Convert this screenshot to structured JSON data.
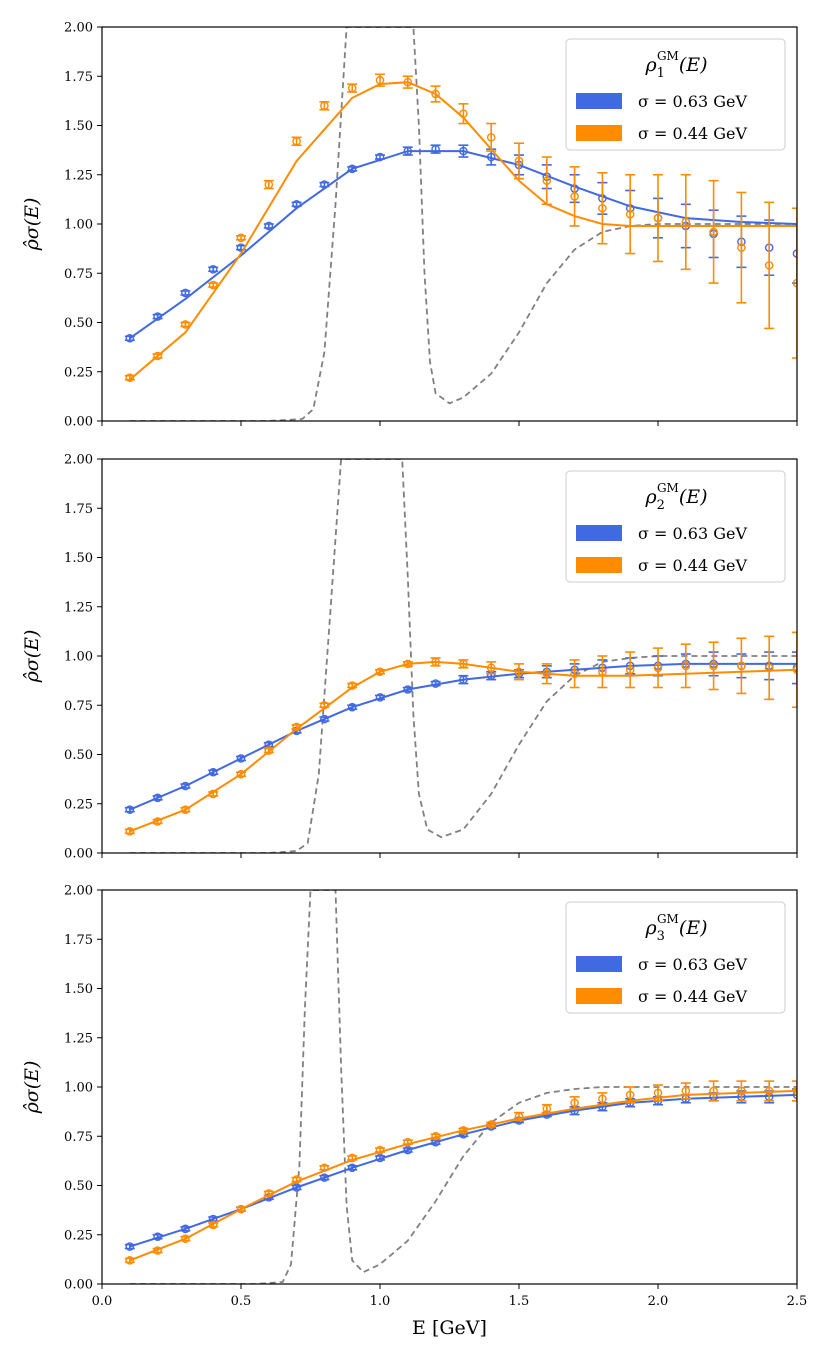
{
  "chart_data": [
    {
      "type": "line",
      "panel": 1,
      "legend": {
        "title_main": "ρ",
        "title_sub": "1",
        "title_sup": "GM",
        "title_tail": "(E)",
        "placement": "top-right"
      },
      "ylabel": "ρ̂σ(E)",
      "xlim": [
        0.0,
        2.5
      ],
      "ylim": [
        0.0,
        2.0
      ],
      "yticks": [
        "0.00",
        "0.25",
        "0.50",
        "0.75",
        "1.00",
        "1.25",
        "1.50",
        "1.75",
        "2.00"
      ],
      "reference": {
        "style": "dashed",
        "color": "#808080",
        "x": [
          0.1,
          0.6,
          0.72,
          0.76,
          0.8,
          0.84,
          0.88,
          0.9,
          1.12,
          1.14,
          1.16,
          1.18,
          1.2,
          1.25,
          1.3,
          1.4,
          1.5,
          1.6,
          1.7,
          1.8,
          1.9,
          2.0,
          2.1,
          2.5
        ],
        "y": [
          0.0,
          0.0,
          0.01,
          0.06,
          0.35,
          1.1,
          2.0,
          2.0,
          2.0,
          1.5,
          0.75,
          0.3,
          0.14,
          0.09,
          0.12,
          0.24,
          0.45,
          0.7,
          0.87,
          0.96,
          0.99,
          1.0,
          1.0,
          1.0
        ]
      },
      "series": [
        {
          "name": "σ = 0.63 GeV",
          "color": "#4169E1",
          "curve_x": [
            0.1,
            0.3,
            0.5,
            0.7,
            0.9,
            1.1,
            1.3,
            1.5,
            1.7,
            1.9,
            2.1,
            2.3,
            2.5
          ],
          "curve_y": [
            0.42,
            0.62,
            0.84,
            1.08,
            1.28,
            1.37,
            1.37,
            1.3,
            1.19,
            1.09,
            1.03,
            1.01,
            1.0
          ],
          "points_x": [
            0.1,
            0.2,
            0.3,
            0.4,
            0.5,
            0.6,
            0.7,
            0.8,
            0.9,
            1.0,
            1.1,
            1.2,
            1.3,
            1.4,
            1.5,
            1.6,
            1.7,
            1.8,
            1.9,
            2.0,
            2.1,
            2.2,
            2.3,
            2.4,
            2.5
          ],
          "points_y": [
            0.42,
            0.53,
            0.65,
            0.77,
            0.88,
            0.99,
            1.1,
            1.2,
            1.28,
            1.34,
            1.37,
            1.38,
            1.37,
            1.34,
            1.3,
            1.24,
            1.18,
            1.13,
            1.08,
            1.03,
            0.99,
            0.95,
            0.91,
            0.88,
            0.85
          ],
          "err": [
            0.01,
            0.01,
            0.01,
            0.01,
            0.01,
            0.01,
            0.01,
            0.01,
            0.01,
            0.01,
            0.02,
            0.02,
            0.03,
            0.04,
            0.05,
            0.06,
            0.07,
            0.08,
            0.09,
            0.1,
            0.11,
            0.12,
            0.13,
            0.14,
            0.15
          ]
        },
        {
          "name": "σ = 0.44 GeV",
          "color": "#FF8C00",
          "curve_x": [
            0.1,
            0.3,
            0.5,
            0.7,
            0.9,
            1.0,
            1.1,
            1.2,
            1.3,
            1.4,
            1.5,
            1.6,
            1.7,
            1.8,
            1.9,
            2.0,
            2.2,
            2.5
          ],
          "curve_y": [
            0.21,
            0.45,
            0.85,
            1.32,
            1.64,
            1.71,
            1.72,
            1.66,
            1.54,
            1.38,
            1.22,
            1.1,
            1.04,
            1.0,
            0.99,
            0.99,
            0.99,
            0.99
          ],
          "points_x": [
            0.1,
            0.2,
            0.3,
            0.4,
            0.5,
            0.6,
            0.7,
            0.8,
            0.9,
            1.0,
            1.1,
            1.2,
            1.3,
            1.4,
            1.5,
            1.6,
            1.7,
            1.8,
            1.9,
            2.0,
            2.1,
            2.2,
            2.3,
            2.4,
            2.5
          ],
          "points_y": [
            0.22,
            0.33,
            0.49,
            0.69,
            0.93,
            1.2,
            1.42,
            1.6,
            1.69,
            1.73,
            1.72,
            1.66,
            1.56,
            1.44,
            1.32,
            1.22,
            1.14,
            1.08,
            1.05,
            1.03,
            1.01,
            0.96,
            0.88,
            0.79,
            0.7
          ],
          "err": [
            0.01,
            0.01,
            0.01,
            0.01,
            0.01,
            0.02,
            0.02,
            0.02,
            0.02,
            0.03,
            0.03,
            0.04,
            0.05,
            0.07,
            0.09,
            0.12,
            0.15,
            0.18,
            0.2,
            0.22,
            0.24,
            0.26,
            0.28,
            0.32,
            0.38
          ]
        }
      ]
    },
    {
      "type": "line",
      "panel": 2,
      "legend": {
        "title_main": "ρ",
        "title_sub": "2",
        "title_sup": "GM",
        "title_tail": "(E)",
        "placement": "top-right"
      },
      "ylabel": "ρ̂σ(E)",
      "xlim": [
        0.0,
        2.5
      ],
      "ylim": [
        0.0,
        2.0
      ],
      "yticks": [
        "0.00",
        "0.25",
        "0.50",
        "0.75",
        "1.00",
        "1.25",
        "1.50",
        "1.75",
        "2.00"
      ],
      "reference": {
        "style": "dashed",
        "color": "#808080",
        "x": [
          0.1,
          0.6,
          0.7,
          0.74,
          0.78,
          0.82,
          0.86,
          0.88,
          1.08,
          1.1,
          1.12,
          1.14,
          1.17,
          1.22,
          1.3,
          1.4,
          1.5,
          1.6,
          1.7,
          1.8,
          1.9,
          2.0,
          2.5
        ],
        "y": [
          0.0,
          0.0,
          0.01,
          0.05,
          0.4,
          1.2,
          2.0,
          2.0,
          2.0,
          1.4,
          0.7,
          0.3,
          0.12,
          0.08,
          0.12,
          0.3,
          0.55,
          0.77,
          0.9,
          0.97,
          0.99,
          1.0,
          1.0
        ]
      },
      "series": [
        {
          "name": "σ = 0.63 GeV",
          "color": "#4169E1",
          "curve_x": [
            0.1,
            0.3,
            0.5,
            0.7,
            0.9,
            1.1,
            1.3,
            1.5,
            1.7,
            1.9,
            2.1,
            2.3,
            2.5
          ],
          "curve_y": [
            0.22,
            0.34,
            0.48,
            0.62,
            0.74,
            0.83,
            0.88,
            0.91,
            0.93,
            0.95,
            0.96,
            0.96,
            0.96
          ],
          "points_x": [
            0.1,
            0.2,
            0.3,
            0.4,
            0.5,
            0.6,
            0.7,
            0.8,
            0.9,
            1.0,
            1.1,
            1.2,
            1.3,
            1.4,
            1.5,
            1.6,
            1.7,
            1.8,
            1.9,
            2.0,
            2.1,
            2.2,
            2.3,
            2.4,
            2.5
          ],
          "points_y": [
            0.22,
            0.28,
            0.34,
            0.41,
            0.48,
            0.55,
            0.62,
            0.68,
            0.74,
            0.79,
            0.83,
            0.86,
            0.88,
            0.9,
            0.91,
            0.92,
            0.93,
            0.94,
            0.95,
            0.95,
            0.96,
            0.96,
            0.95,
            0.95,
            0.94
          ],
          "err": [
            0.01,
            0.01,
            0.01,
            0.01,
            0.01,
            0.01,
            0.01,
            0.01,
            0.01,
            0.01,
            0.01,
            0.01,
            0.02,
            0.02,
            0.02,
            0.03,
            0.03,
            0.04,
            0.04,
            0.05,
            0.05,
            0.06,
            0.06,
            0.07,
            0.08
          ]
        },
        {
          "name": "σ = 0.44 GeV",
          "color": "#FF8C00",
          "curve_x": [
            0.1,
            0.3,
            0.5,
            0.7,
            0.9,
            1.0,
            1.1,
            1.2,
            1.3,
            1.5,
            1.7,
            1.9,
            2.1,
            2.3,
            2.5
          ],
          "curve_y": [
            0.11,
            0.22,
            0.4,
            0.63,
            0.84,
            0.92,
            0.96,
            0.97,
            0.96,
            0.92,
            0.9,
            0.9,
            0.91,
            0.92,
            0.93
          ],
          "points_x": [
            0.1,
            0.2,
            0.3,
            0.4,
            0.5,
            0.6,
            0.7,
            0.8,
            0.9,
            1.0,
            1.1,
            1.2,
            1.3,
            1.4,
            1.5,
            1.6,
            1.7,
            1.8,
            1.9,
            2.0,
            2.1,
            2.2,
            2.3,
            2.4,
            2.5
          ],
          "points_y": [
            0.11,
            0.16,
            0.22,
            0.3,
            0.4,
            0.52,
            0.64,
            0.75,
            0.85,
            0.92,
            0.96,
            0.97,
            0.96,
            0.94,
            0.92,
            0.91,
            0.91,
            0.92,
            0.93,
            0.94,
            0.95,
            0.95,
            0.95,
            0.94,
            0.93
          ],
          "err": [
            0.01,
            0.01,
            0.01,
            0.01,
            0.01,
            0.01,
            0.01,
            0.01,
            0.01,
            0.01,
            0.01,
            0.02,
            0.02,
            0.03,
            0.04,
            0.05,
            0.07,
            0.08,
            0.09,
            0.1,
            0.11,
            0.12,
            0.14,
            0.16,
            0.19
          ]
        }
      ]
    },
    {
      "type": "line",
      "panel": 3,
      "legend": {
        "title_main": "ρ",
        "title_sub": "3",
        "title_sup": "GM",
        "title_tail": "(E)",
        "placement": "top-right"
      },
      "ylabel": "ρ̂σ(E)",
      "xlabel": "E [GeV]",
      "xlim": [
        0.0,
        2.5
      ],
      "ylim": [
        0.0,
        2.0
      ],
      "xticks": [
        "0.0",
        "0.5",
        "1.0",
        "1.5",
        "2.0",
        "2.5"
      ],
      "yticks": [
        "0.00",
        "0.25",
        "0.50",
        "0.75",
        "1.00",
        "1.25",
        "1.50",
        "1.75",
        "2.00"
      ],
      "reference": {
        "style": "dashed",
        "color": "#808080",
        "x": [
          0.1,
          0.55,
          0.65,
          0.68,
          0.71,
          0.73,
          0.75,
          0.84,
          0.86,
          0.88,
          0.9,
          0.94,
          1.0,
          1.1,
          1.2,
          1.3,
          1.4,
          1.5,
          1.6,
          1.7,
          1.8,
          2.0,
          2.5
        ],
        "y": [
          0.0,
          0.0,
          0.01,
          0.1,
          0.6,
          1.4,
          2.0,
          2.0,
          1.1,
          0.4,
          0.12,
          0.06,
          0.1,
          0.22,
          0.42,
          0.65,
          0.82,
          0.92,
          0.97,
          0.99,
          1.0,
          1.0,
          1.0
        ]
      },
      "series": [
        {
          "name": "σ = 0.63 GeV",
          "color": "#4169E1",
          "curve_x": [
            0.1,
            0.3,
            0.5,
            0.7,
            0.9,
            1.1,
            1.3,
            1.5,
            1.7,
            1.9,
            2.1,
            2.3,
            2.5
          ],
          "curve_y": [
            0.19,
            0.28,
            0.38,
            0.49,
            0.59,
            0.68,
            0.76,
            0.83,
            0.88,
            0.92,
            0.94,
            0.95,
            0.96
          ],
          "points_x": [
            0.1,
            0.2,
            0.3,
            0.4,
            0.5,
            0.6,
            0.7,
            0.8,
            0.9,
            1.0,
            1.1,
            1.2,
            1.3,
            1.4,
            1.5,
            1.6,
            1.7,
            1.8,
            1.9,
            2.0,
            2.1,
            2.2,
            2.3,
            2.4,
            2.5
          ],
          "points_y": [
            0.19,
            0.24,
            0.28,
            0.33,
            0.38,
            0.44,
            0.49,
            0.54,
            0.59,
            0.64,
            0.68,
            0.72,
            0.76,
            0.8,
            0.83,
            0.86,
            0.88,
            0.9,
            0.92,
            0.93,
            0.94,
            0.95,
            0.95,
            0.95,
            0.96
          ],
          "err": [
            0.01,
            0.01,
            0.01,
            0.01,
            0.01,
            0.01,
            0.01,
            0.01,
            0.01,
            0.01,
            0.01,
            0.01,
            0.01,
            0.01,
            0.01,
            0.01,
            0.02,
            0.02,
            0.02,
            0.02,
            0.02,
            0.02,
            0.03,
            0.03,
            0.03
          ]
        },
        {
          "name": "σ = 0.44 GeV",
          "color": "#FF8C00",
          "curve_x": [
            0.1,
            0.3,
            0.5,
            0.7,
            0.9,
            1.1,
            1.3,
            1.5,
            1.7,
            1.9,
            2.1,
            2.3,
            2.5
          ],
          "curve_y": [
            0.12,
            0.23,
            0.38,
            0.52,
            0.63,
            0.71,
            0.78,
            0.84,
            0.89,
            0.93,
            0.96,
            0.97,
            0.98
          ],
          "points_x": [
            0.1,
            0.2,
            0.3,
            0.4,
            0.5,
            0.6,
            0.7,
            0.8,
            0.9,
            1.0,
            1.1,
            1.2,
            1.3,
            1.4,
            1.5,
            1.6,
            1.7,
            1.8,
            1.9,
            2.0,
            2.1,
            2.2,
            2.3,
            2.4,
            2.5
          ],
          "points_y": [
            0.12,
            0.17,
            0.23,
            0.3,
            0.38,
            0.46,
            0.53,
            0.59,
            0.64,
            0.68,
            0.72,
            0.75,
            0.78,
            0.81,
            0.85,
            0.89,
            0.92,
            0.94,
            0.96,
            0.97,
            0.98,
            0.98,
            0.98,
            0.98,
            0.98
          ],
          "err": [
            0.01,
            0.01,
            0.01,
            0.01,
            0.01,
            0.01,
            0.01,
            0.01,
            0.01,
            0.01,
            0.01,
            0.01,
            0.01,
            0.01,
            0.02,
            0.02,
            0.03,
            0.03,
            0.04,
            0.04,
            0.04,
            0.05,
            0.05,
            0.05,
            0.05
          ]
        }
      ]
    }
  ]
}
